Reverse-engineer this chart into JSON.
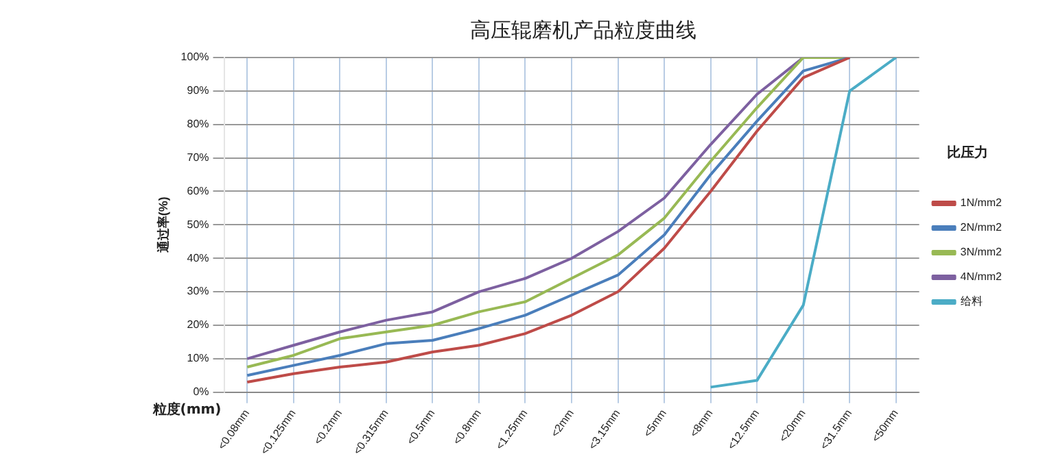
{
  "chart_data": {
    "type": "line",
    "title": "高压辊磨机产品粒度曲线",
    "xlabel": "粒度(mm)",
    "ylabel": "通过率(%)",
    "legend_title": "比压力",
    "legend": "right",
    "grid": true,
    "marker": "none",
    "line_style": "solid",
    "categories": [
      "<0.08mm",
      "<0.125mm",
      "<0.2mm",
      "<0.315mm",
      "<0.5mm",
      "<0.8mm",
      "<1.25mm",
      "<2mm",
      "<3.15mm",
      "<5mm",
      "<8mm",
      "<12.5mm",
      "<20mm",
      "<31.5mm",
      "<50mm"
    ],
    "ylim": [
      0,
      100
    ],
    "yticks": [
      {
        "value": 0,
        "label": "0%"
      },
      {
        "value": 10,
        "label": "10%"
      },
      {
        "value": 20,
        "label": "20%"
      },
      {
        "value": 30,
        "label": "30%"
      },
      {
        "value": 40,
        "label": "40%"
      },
      {
        "value": 50,
        "label": "50%"
      },
      {
        "value": 60,
        "label": "60%"
      },
      {
        "value": 70,
        "label": "70%"
      },
      {
        "value": 80,
        "label": "80%"
      },
      {
        "value": 90,
        "label": "90%"
      },
      {
        "value": 100,
        "label": "100%"
      }
    ],
    "series": [
      {
        "name": "1N/mm2",
        "color": "#be4b48",
        "values": [
          3,
          5.5,
          7.5,
          9,
          12,
          14,
          17.5,
          23,
          30,
          43,
          60,
          78,
          94,
          100,
          null
        ]
      },
      {
        "name": "2N/mm2",
        "color": "#4a7ebb",
        "values": [
          5,
          8,
          11,
          14.5,
          15.5,
          19,
          23,
          29,
          35,
          47,
          65,
          81,
          96,
          100,
          null
        ]
      },
      {
        "name": "3N/mm2",
        "color": "#98b954",
        "values": [
          7.5,
          11,
          16,
          18,
          20,
          24,
          27,
          34,
          41,
          52,
          69,
          85,
          100,
          100,
          null
        ]
      },
      {
        "name": "4N/mm2",
        "color": "#7d60a0",
        "values": [
          10,
          14,
          18,
          21.5,
          24,
          30,
          34,
          40,
          48,
          58,
          74,
          89,
          100,
          100,
          null
        ]
      },
      {
        "name": "给料",
        "color": "#4bacc6",
        "values": [
          null,
          null,
          null,
          null,
          null,
          null,
          null,
          null,
          null,
          null,
          1.5,
          3.5,
          26,
          90,
          100
        ]
      }
    ]
  }
}
